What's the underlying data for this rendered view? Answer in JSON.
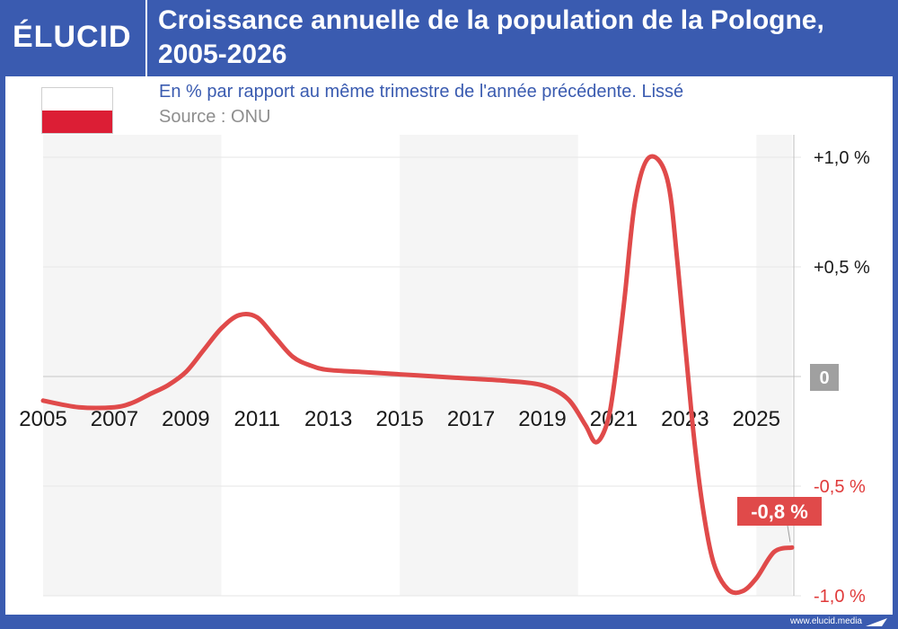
{
  "brand": {
    "logo_text": "ÉLUCID",
    "footer_link": "www.elucid.media"
  },
  "header": {
    "title": "Croissance annuelle de la population de la Pologne, 2005-2026"
  },
  "subtitle": "En % par rapport au même trimestre de l'année précédente. Lissé",
  "source": "Source : ONU",
  "colors": {
    "header_bg": "#3a5bb0",
    "series": "#e04a4a",
    "shade": "#f5f5f5",
    "zero_badge": "#a0a0a0",
    "negative_label": "#e03a3a"
  },
  "icons": {
    "flag": "poland-flag-icon"
  },
  "chart_data": {
    "type": "line",
    "title": "Croissance annuelle de la population de la Pologne, 2005-2026",
    "subtitle": "En % par rapport au même trimestre de l'année précédente. Lissé",
    "xlabel": "",
    "ylabel": "",
    "xlim": [
      2005,
      2026
    ],
    "ylim": [
      -1.0,
      1.0
    ],
    "x_ticks": [
      "2005",
      "2007",
      "2009",
      "2011",
      "2013",
      "2015",
      "2017",
      "2019",
      "2021",
      "2023",
      "2025"
    ],
    "y_ticks": [
      {
        "value": 1.0,
        "label": "+1,0 %"
      },
      {
        "value": 0.5,
        "label": "+0,5 %"
      },
      {
        "value": 0,
        "label": "0"
      },
      {
        "value": -0.5,
        "label": "-0,5 %"
      },
      {
        "value": -1.0,
        "label": "-1,0 %"
      }
    ],
    "grid": true,
    "legend": "none",
    "shaded_bands": [
      [
        2005,
        2010
      ],
      [
        2015,
        2020
      ],
      [
        2025,
        2026
      ]
    ],
    "series": [
      {
        "x": [
          2005,
          2006,
          2007,
          2007.5,
          2008,
          2008.5,
          2009,
          2009.5,
          2010,
          2010.5,
          2011,
          2011.5,
          2012,
          2012.5,
          2013,
          2014,
          2015,
          2016,
          2017,
          2018,
          2019,
          2019.7,
          2020.2,
          2020.5,
          2020.8,
          2021,
          2021.3,
          2021.6,
          2022,
          2022.5,
          2022.8,
          2023.2,
          2023.5,
          2023.8,
          2024.2,
          2024.6,
          2025,
          2025.5,
          2026
        ],
        "y": [
          -0.11,
          -0.14,
          -0.14,
          -0.12,
          -0.08,
          -0.04,
          0.02,
          0.12,
          0.22,
          0.28,
          0.27,
          0.18,
          0.09,
          0.05,
          0.03,
          0.02,
          0.01,
          0.0,
          -0.01,
          -0.02,
          -0.04,
          -0.1,
          -0.22,
          -0.3,
          -0.22,
          -0.05,
          0.35,
          0.8,
          1.0,
          0.9,
          0.5,
          -0.2,
          -0.6,
          -0.85,
          -0.97,
          -0.98,
          -0.92,
          -0.8,
          -0.78
        ],
        "end_label": "-0,8 %"
      }
    ]
  }
}
